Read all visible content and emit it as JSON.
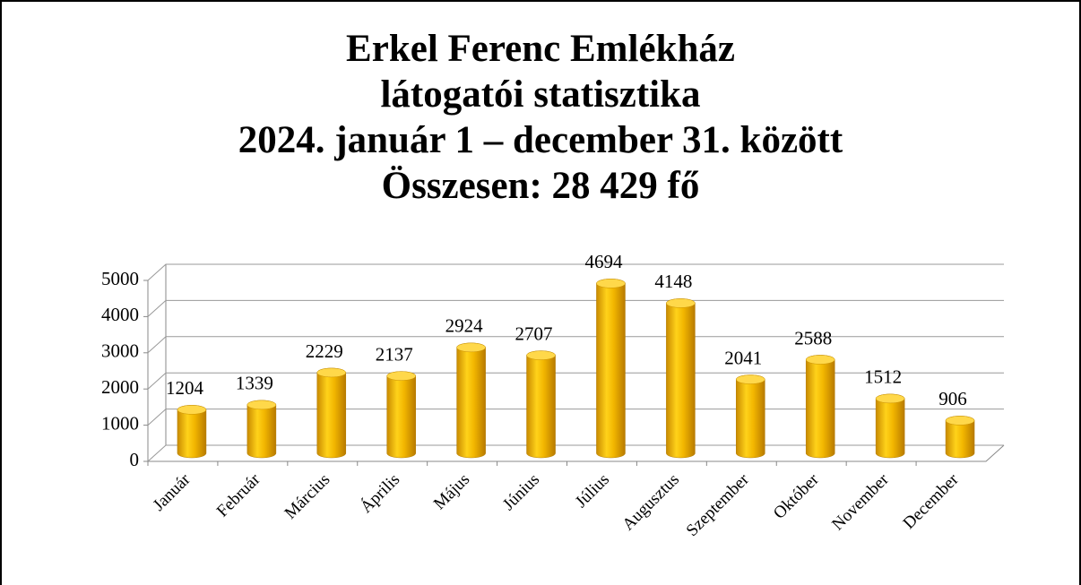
{
  "chart_data": {
    "type": "bar",
    "title": [
      "Erkel Ferenc Emlékház",
      "látogatói statisztika",
      "2024. január 1 – december 31. között",
      "Összesen: 28 429 fő"
    ],
    "categories": [
      "Január",
      "Február",
      "Március",
      "Április",
      "Május",
      "Június",
      "Július",
      "Augusztus",
      "Szeptember",
      "Október",
      "November",
      "December"
    ],
    "values": [
      1204,
      1339,
      2229,
      2137,
      2924,
      2707,
      4694,
      4148,
      2041,
      2588,
      1512,
      906
    ],
    "color": "#f2b600",
    "ylim": [
      0,
      5000
    ],
    "yticks": [
      0,
      1000,
      2000,
      3000,
      4000,
      5000
    ],
    "grid": true
  }
}
